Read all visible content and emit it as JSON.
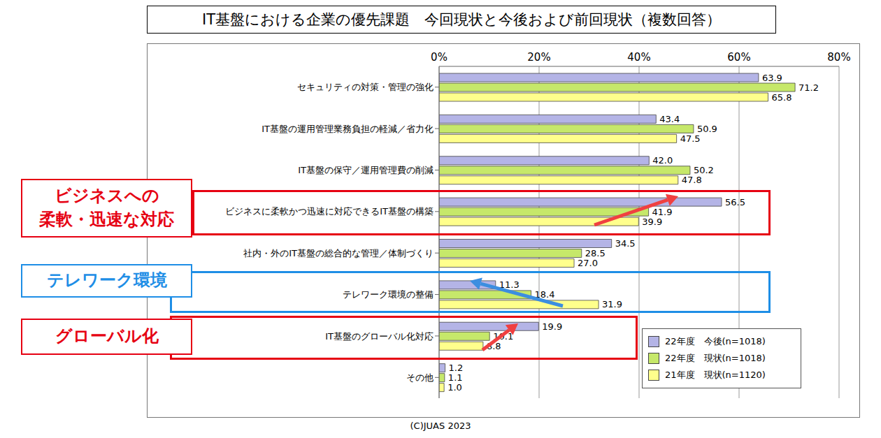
{
  "chart_data": {
    "type": "bar",
    "orientation": "horizontal",
    "title": "IT基盤における企業の優先課題　今回現状と今後および前回現状（複数回答）",
    "categories": [
      "セキュリティの対策・管理の強化",
      "IT基盤の運用管理業務負担の軽減／省力化",
      "IT基盤の保守／運用管理費の削減",
      "ビジネスに柔軟かつ迅速に対応できるIT基盤の構築",
      "社内・外のIT基盤の総合的な管理／体制づくり",
      "テレワーク環境の整備",
      "IT基盤のグローバル化対応",
      "その他"
    ],
    "series": [
      {
        "name": "22年度　今後(n=1018)",
        "color": "#b4b4e6",
        "values": [
          63.9,
          43.4,
          42.0,
          56.5,
          34.5,
          11.3,
          19.9,
          1.2
        ],
        "value_labels": [
          "63.9",
          "43.4",
          "42.0",
          "56.5",
          "34.5",
          "11.3",
          "19.9",
          "1.2"
        ]
      },
      {
        "name": "22年度　現状(n=1018)",
        "color": "#c6e86a",
        "values": [
          71.2,
          50.9,
          50.2,
          41.9,
          28.5,
          18.4,
          10.1,
          1.1
        ],
        "value_labels": [
          "71.2",
          "50.9",
          "50.2",
          "41.9",
          "28.5",
          "18.4",
          "10.1",
          "1.1"
        ]
      },
      {
        "name": "21年度　現状(n=1120)",
        "color": "#ffff8c",
        "values": [
          65.8,
          47.5,
          47.8,
          39.9,
          27.0,
          31.9,
          8.8,
          1.0
        ],
        "value_labels": [
          "65.8",
          "47.5",
          "47.8",
          "39.9",
          "27.0",
          "31.9",
          "8.8",
          "1.0"
        ]
      }
    ],
    "xlim": [
      0,
      80
    ],
    "xticks": [
      {
        "value": 0,
        "label": "0%"
      },
      {
        "value": 20,
        "label": "20%"
      },
      {
        "value": 40,
        "label": "40%"
      },
      {
        "value": 60,
        "label": "60%"
      },
      {
        "value": 80,
        "label": "80%"
      }
    ],
    "grid": true,
    "data_labels": true,
    "legend": "lower right",
    "annotations": [
      {
        "text": "ビジネスへの\n柔軟・迅速な対応",
        "color": "#e60012"
      },
      {
        "text": "テレワーク環境",
        "color": "#1e8ee6"
      },
      {
        "text": "グローバル化",
        "color": "#e60012"
      }
    ],
    "source": "(C)JUAS 2023"
  }
}
